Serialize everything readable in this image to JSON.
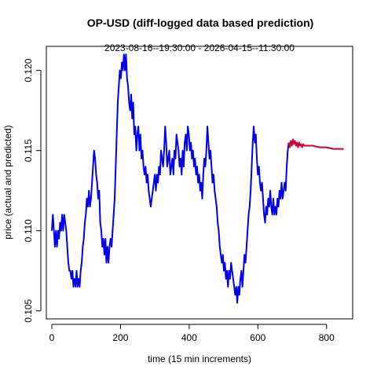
{
  "chart_data": {
    "type": "line",
    "title": "OP-USD (diff-logged data based prediction)",
    "subtitle": "2023-08-16--19:30:00  -  2026-04-15--11:30:00",
    "xlabel": "time (15 min increments)",
    "ylabel": "price (actual and predicted)",
    "xlim": [
      -16,
      876
    ],
    "ylim": [
      0.1045,
      0.1215
    ],
    "x_ticks": [
      0,
      200,
      400,
      600,
      800
    ],
    "x_tick_labels": [
      "0",
      "200",
      "400",
      "600",
      "800"
    ],
    "y_ticks": [
      0.105,
      0.11,
      0.115,
      0.12
    ],
    "y_tick_labels": [
      "0.105",
      "0.110",
      "0.115",
      "0.120"
    ],
    "grid": false,
    "colors": {
      "actual": "#0000ee",
      "predicted": "#cc0033"
    },
    "series": [
      {
        "key": "actual",
        "points": [
          [
            0,
            0.11
          ],
          [
            3,
            0.111
          ],
          [
            6,
            0.11
          ],
          [
            9,
            0.109
          ],
          [
            12,
            0.11
          ],
          [
            15,
            0.109
          ],
          [
            18,
            0.11
          ],
          [
            21,
            0.1095
          ],
          [
            24,
            0.1105
          ],
          [
            27,
            0.11
          ],
          [
            30,
            0.111
          ],
          [
            33,
            0.11
          ],
          [
            36,
            0.111
          ],
          [
            39,
            0.1105
          ],
          [
            42,
            0.11
          ],
          [
            45,
            0.109
          ],
          [
            48,
            0.108
          ],
          [
            51,
            0.1075
          ],
          [
            54,
            0.1075
          ],
          [
            57,
            0.107
          ],
          [
            60,
            0.1075
          ],
          [
            63,
            0.1065
          ],
          [
            66,
            0.107
          ],
          [
            69,
            0.1065
          ],
          [
            72,
            0.1075
          ],
          [
            75,
            0.1065
          ],
          [
            78,
            0.107
          ],
          [
            81,
            0.1065
          ],
          [
            84,
            0.1075
          ],
          [
            87,
            0.108
          ],
          [
            90,
            0.109
          ],
          [
            93,
            0.1095
          ],
          [
            96,
            0.1105
          ],
          [
            99,
            0.111
          ],
          [
            102,
            0.112
          ],
          [
            105,
            0.1115
          ],
          [
            108,
            0.1125
          ],
          [
            111,
            0.1115
          ],
          [
            114,
            0.112
          ],
          [
            117,
            0.113
          ],
          [
            120,
            0.114
          ],
          [
            123,
            0.115
          ],
          [
            126,
            0.1145
          ],
          [
            129,
            0.1135
          ],
          [
            132,
            0.113
          ],
          [
            135,
            0.112
          ],
          [
            138,
            0.1125
          ],
          [
            141,
            0.1105
          ],
          [
            144,
            0.11
          ],
          [
            147,
            0.109
          ],
          [
            150,
            0.1095
          ],
          [
            153,
            0.1085
          ],
          [
            156,
            0.1095
          ],
          [
            159,
            0.108
          ],
          [
            162,
            0.109
          ],
          [
            165,
            0.108
          ],
          [
            168,
            0.109
          ],
          [
            171,
            0.1095
          ],
          [
            174,
            0.109
          ],
          [
            177,
            0.11
          ],
          [
            180,
            0.111
          ],
          [
            183,
            0.112
          ],
          [
            186,
            0.114
          ],
          [
            189,
            0.116
          ],
          [
            192,
            0.118
          ],
          [
            195,
            0.119
          ],
          [
            198,
            0.12
          ],
          [
            201,
            0.1195
          ],
          [
            204,
            0.1205
          ],
          [
            207,
            0.12
          ],
          [
            210,
            0.121
          ],
          [
            213,
            0.12
          ],
          [
            216,
            0.121
          ],
          [
            219,
            0.1195
          ],
          [
            222,
            0.119
          ],
          [
            225,
            0.118
          ],
          [
            228,
            0.1175
          ],
          [
            231,
            0.1185
          ],
          [
            234,
            0.117
          ],
          [
            237,
            0.118
          ],
          [
            240,
            0.116
          ],
          [
            243,
            0.1165
          ],
          [
            246,
            0.115
          ],
          [
            249,
            0.116
          ],
          [
            252,
            0.1165
          ],
          [
            255,
            0.115
          ],
          [
            258,
            0.116
          ],
          [
            261,
            0.1145
          ],
          [
            264,
            0.115
          ],
          [
            267,
            0.114
          ],
          [
            270,
            0.1135
          ],
          [
            273,
            0.114
          ],
          [
            276,
            0.113
          ],
          [
            279,
            0.1135
          ],
          [
            282,
            0.1125
          ],
          [
            285,
            0.112
          ],
          [
            288,
            0.1115
          ],
          [
            291,
            0.112
          ],
          [
            294,
            0.1125
          ],
          [
            297,
            0.113
          ],
          [
            300,
            0.1135
          ],
          [
            303,
            0.1125
          ],
          [
            306,
            0.1135
          ],
          [
            309,
            0.113
          ],
          [
            312,
            0.114
          ],
          [
            315,
            0.1135
          ],
          [
            318,
            0.115
          ],
          [
            321,
            0.1145
          ],
          [
            324,
            0.114
          ],
          [
            327,
            0.115
          ],
          [
            330,
            0.1165
          ],
          [
            333,
            0.1155
          ],
          [
            336,
            0.114
          ],
          [
            339,
            0.1145
          ],
          [
            342,
            0.115
          ],
          [
            345,
            0.1135
          ],
          [
            348,
            0.114
          ],
          [
            351,
            0.1145
          ],
          [
            354,
            0.1135
          ],
          [
            357,
            0.115
          ],
          [
            360,
            0.1145
          ],
          [
            363,
            0.116
          ],
          [
            366,
            0.1155
          ],
          [
            369,
            0.115
          ],
          [
            372,
            0.114
          ],
          [
            375,
            0.1145
          ],
          [
            378,
            0.1135
          ],
          [
            381,
            0.115
          ],
          [
            384,
            0.114
          ],
          [
            387,
            0.1155
          ],
          [
            390,
            0.116
          ],
          [
            393,
            0.115
          ],
          [
            396,
            0.1165
          ],
          [
            399,
            0.116
          ],
          [
            402,
            0.115
          ],
          [
            405,
            0.1155
          ],
          [
            408,
            0.1145
          ],
          [
            411,
            0.115
          ],
          [
            414,
            0.114
          ],
          [
            417,
            0.1145
          ],
          [
            420,
            0.1135
          ],
          [
            423,
            0.114
          ],
          [
            426,
            0.113
          ],
          [
            429,
            0.1135
          ],
          [
            432,
            0.1125
          ],
          [
            435,
            0.113
          ],
          [
            438,
            0.112
          ],
          [
            441,
            0.1135
          ],
          [
            444,
            0.1145
          ],
          [
            447,
            0.114
          ],
          [
            450,
            0.115
          ],
          [
            453,
            0.1165
          ],
          [
            456,
            0.1155
          ],
          [
            459,
            0.1145
          ],
          [
            462,
            0.115
          ],
          [
            465,
            0.114
          ],
          [
            468,
            0.113
          ],
          [
            471,
            0.1135
          ],
          [
            474,
            0.1125
          ],
          [
            477,
            0.112
          ],
          [
            480,
            0.1115
          ],
          [
            483,
            0.1105
          ],
          [
            486,
            0.11
          ],
          [
            489,
            0.109
          ],
          [
            492,
            0.1085
          ],
          [
            495,
            0.108
          ],
          [
            498,
            0.1085
          ],
          [
            501,
            0.1075
          ],
          [
            504,
            0.108
          ],
          [
            507,
            0.107
          ],
          [
            510,
            0.1075
          ],
          [
            513,
            0.1065
          ],
          [
            516,
            0.1075
          ],
          [
            519,
            0.107
          ],
          [
            522,
            0.108
          ],
          [
            525,
            0.1075
          ],
          [
            528,
            0.107
          ],
          [
            531,
            0.1065
          ],
          [
            534,
            0.106
          ],
          [
            537,
            0.1065
          ],
          [
            540,
            0.1055
          ],
          [
            543,
            0.1065
          ],
          [
            546,
            0.106
          ],
          [
            549,
            0.107
          ],
          [
            552,
            0.1075
          ],
          [
            555,
            0.1065
          ],
          [
            558,
            0.1075
          ],
          [
            561,
            0.1085
          ],
          [
            564,
            0.108
          ],
          [
            567,
            0.109
          ],
          [
            570,
            0.11
          ],
          [
            573,
            0.111
          ],
          [
            576,
            0.1115
          ],
          [
            579,
            0.1125
          ],
          [
            582,
            0.114
          ],
          [
            585,
            0.1155
          ],
          [
            588,
            0.1165
          ],
          [
            591,
            0.1155
          ],
          [
            594,
            0.116
          ],
          [
            597,
            0.1145
          ],
          [
            600,
            0.1135
          ],
          [
            603,
            0.114
          ],
          [
            606,
            0.113
          ],
          [
            609,
            0.1125
          ],
          [
            612,
            0.113
          ],
          [
            615,
            0.112
          ],
          [
            618,
            0.111
          ],
          [
            621,
            0.1105
          ],
          [
            624,
            0.1115
          ],
          [
            627,
            0.111
          ],
          [
            630,
            0.112
          ],
          [
            633,
            0.1115
          ],
          [
            636,
            0.1125
          ],
          [
            639,
            0.1115
          ],
          [
            642,
            0.111
          ],
          [
            645,
            0.112
          ],
          [
            648,
            0.111
          ],
          [
            651,
            0.1115
          ],
          [
            654,
            0.111
          ],
          [
            657,
            0.112
          ],
          [
            660,
            0.1115
          ],
          [
            663,
            0.1125
          ],
          [
            666,
            0.112
          ],
          [
            669,
            0.113
          ],
          [
            672,
            0.112
          ],
          [
            675,
            0.1125
          ],
          [
            678,
            0.113
          ],
          [
            681,
            0.1125
          ],
          [
            684,
            0.114
          ],
          [
            687,
            0.115
          ],
          [
            690,
            0.1155
          ]
        ]
      },
      {
        "key": "predicted",
        "points": [
          [
            690,
            0.1155
          ],
          [
            693,
            0.1152
          ],
          [
            696,
            0.1156
          ],
          [
            699,
            0.1153
          ],
          [
            702,
            0.1157
          ],
          [
            705,
            0.1154
          ],
          [
            708,
            0.1156
          ],
          [
            711,
            0.1153
          ],
          [
            714,
            0.1155
          ],
          [
            717,
            0.1152
          ],
          [
            720,
            0.1155
          ],
          [
            723,
            0.1153
          ],
          [
            726,
            0.1154
          ],
          [
            729,
            0.1152
          ],
          [
            732,
            0.1154
          ],
          [
            735,
            0.1153
          ],
          [
            740,
            0.1153
          ],
          [
            760,
            0.1153
          ],
          [
            780,
            0.1152
          ],
          [
            800,
            0.1152
          ],
          [
            820,
            0.1151
          ],
          [
            850,
            0.1151
          ]
        ]
      }
    ]
  }
}
